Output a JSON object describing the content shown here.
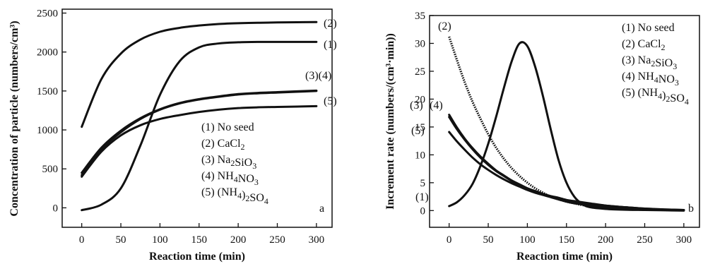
{
  "chart_data": [
    {
      "type": "line",
      "panel_label": "a",
      "xlabel": "Reaction time (min)",
      "ylabel": "Concentration of particle (numbers/cm³)",
      "xlim": [
        -25,
        320
      ],
      "ylim": [
        -250,
        2550
      ],
      "x_ticks": [
        0,
        50,
        100,
        150,
        200,
        250,
        300
      ],
      "y_ticks": [
        0,
        500,
        1000,
        1500,
        2000,
        2500
      ],
      "grid": false,
      "legend_position": "bottom-right",
      "legend": [
        {
          "text": "(1) No seed"
        },
        {
          "text": "(2) CaCl",
          "sub": "2"
        },
        {
          "text": "(3) Na",
          "sub": "2",
          "text2": "SiO",
          "sub2": "3"
        },
        {
          "text": "(4) NH",
          "sub": "4",
          "text2": "NO",
          "sub2": "3"
        },
        {
          "text": "(5) (NH",
          "sub": "4",
          "text2": ")",
          "sub2": "2",
          "text3": "SO",
          "sub3": "4"
        }
      ],
      "x": [
        0,
        25,
        50,
        75,
        100,
        125,
        150,
        175,
        200,
        225,
        250,
        275,
        300
      ],
      "series": [
        {
          "label": "(1)",
          "style": "solid",
          "values": [
            -30,
            40,
            250,
            800,
            1450,
            1880,
            2060,
            2110,
            2125,
            2130,
            2130,
            2130,
            2130
          ]
        },
        {
          "label": "(2)",
          "style": "solid",
          "values": [
            1040,
            1650,
            1980,
            2160,
            2260,
            2310,
            2340,
            2360,
            2370,
            2375,
            2380,
            2382,
            2385
          ]
        },
        {
          "label": "(3)",
          "style": "solid",
          "values": [
            420,
            750,
            970,
            1140,
            1260,
            1340,
            1390,
            1425,
            1455,
            1470,
            1480,
            1490,
            1500
          ]
        },
        {
          "label": "(4)",
          "style": "solid",
          "values": [
            450,
            770,
            990,
            1150,
            1265,
            1345,
            1395,
            1430,
            1460,
            1475,
            1485,
            1495,
            1505
          ]
        },
        {
          "label": "(5)",
          "style": "solid",
          "values": [
            400,
            720,
            930,
            1060,
            1140,
            1190,
            1230,
            1260,
            1280,
            1290,
            1295,
            1300,
            1305
          ]
        }
      ],
      "curve_labels": [
        "(2)",
        "(1)",
        "(3)(4)",
        "(5)"
      ]
    },
    {
      "type": "line",
      "panel_label": "b",
      "xlabel": "Reaction time (min)",
      "ylabel": "Increment rate (numbers/(cm³·min))",
      "xlim": [
        -25,
        320
      ],
      "ylim": [
        -3,
        35
      ],
      "x_ticks": [
        0,
        50,
        100,
        150,
        200,
        250,
        300
      ],
      "y_ticks": [
        0,
        5,
        10,
        15,
        20,
        25,
        30,
        35
      ],
      "grid": false,
      "legend_position": "top-right",
      "legend": [
        {
          "text": "(1) No seed"
        },
        {
          "text": "(2) CaCl",
          "sub": "2"
        },
        {
          "text": "(3) Na",
          "sub": "2",
          "text2": "SiO",
          "sub2": "3"
        },
        {
          "text": "(4) NH",
          "sub": "4",
          "text2": "NO",
          "sub2": "3"
        },
        {
          "text": "(5) (NH",
          "sub": "4",
          "text2": ")",
          "sub2": "2",
          "text3": "SO",
          "sub3": "4"
        }
      ],
      "x": [
        0,
        10,
        20,
        30,
        40,
        50,
        60,
        70,
        80,
        90,
        100,
        110,
        120,
        130,
        140,
        150,
        160,
        170,
        180,
        200,
        225,
        250,
        275,
        300
      ],
      "series": [
        {
          "label": "(1)",
          "style": "solid",
          "values": [
            0.8,
            1.5,
            2.8,
            4.8,
            8.0,
            12.0,
            16.8,
            22.0,
            26.8,
            30.0,
            29.5,
            25.8,
            20.5,
            14.5,
            9.0,
            5.0,
            2.5,
            1.2,
            0.6,
            0.3,
            0.15,
            0.1,
            0.05,
            0.0
          ]
        },
        {
          "label": "(2)",
          "style": "dotted",
          "values": [
            31.2,
            27.0,
            23.0,
            19.5,
            16.5,
            13.7,
            11.3,
            9.3,
            7.6,
            6.2,
            5.0,
            4.0,
            3.2,
            2.5,
            2.0,
            1.6,
            1.3,
            1.0,
            0.8,
            0.5,
            0.3,
            0.2,
            0.1,
            0.05
          ]
        },
        {
          "label": "(3)",
          "style": "solid",
          "values": [
            17.2,
            14.9,
            12.9,
            11.2,
            9.7,
            8.4,
            7.2,
            6.3,
            5.4,
            4.7,
            4.0,
            3.5,
            3.0,
            2.6,
            2.3,
            1.9,
            1.7,
            1.5,
            1.3,
            0.9,
            0.6,
            0.35,
            0.2,
            0.1
          ]
        },
        {
          "label": "(4)",
          "style": "solid",
          "values": [
            16.8,
            14.6,
            12.7,
            11.0,
            9.5,
            8.2,
            7.1,
            6.2,
            5.3,
            4.6,
            4.0,
            3.4,
            2.9,
            2.5,
            2.2,
            1.9,
            1.6,
            1.4,
            1.2,
            0.9,
            0.6,
            0.35,
            0.2,
            0.1
          ]
        },
        {
          "label": "(5)",
          "style": "solid",
          "values": [
            14.1,
            12.4,
            10.9,
            9.5,
            8.3,
            7.3,
            6.4,
            5.6,
            4.9,
            4.3,
            3.7,
            3.2,
            2.8,
            2.4,
            2.0,
            1.6,
            1.3,
            1.1,
            0.9,
            0.6,
            0.4,
            0.25,
            0.15,
            0.08
          ]
        }
      ],
      "curve_labels": [
        "(2)",
        "(3)",
        "(4)",
        "(5)",
        "(1)"
      ]
    }
  ]
}
